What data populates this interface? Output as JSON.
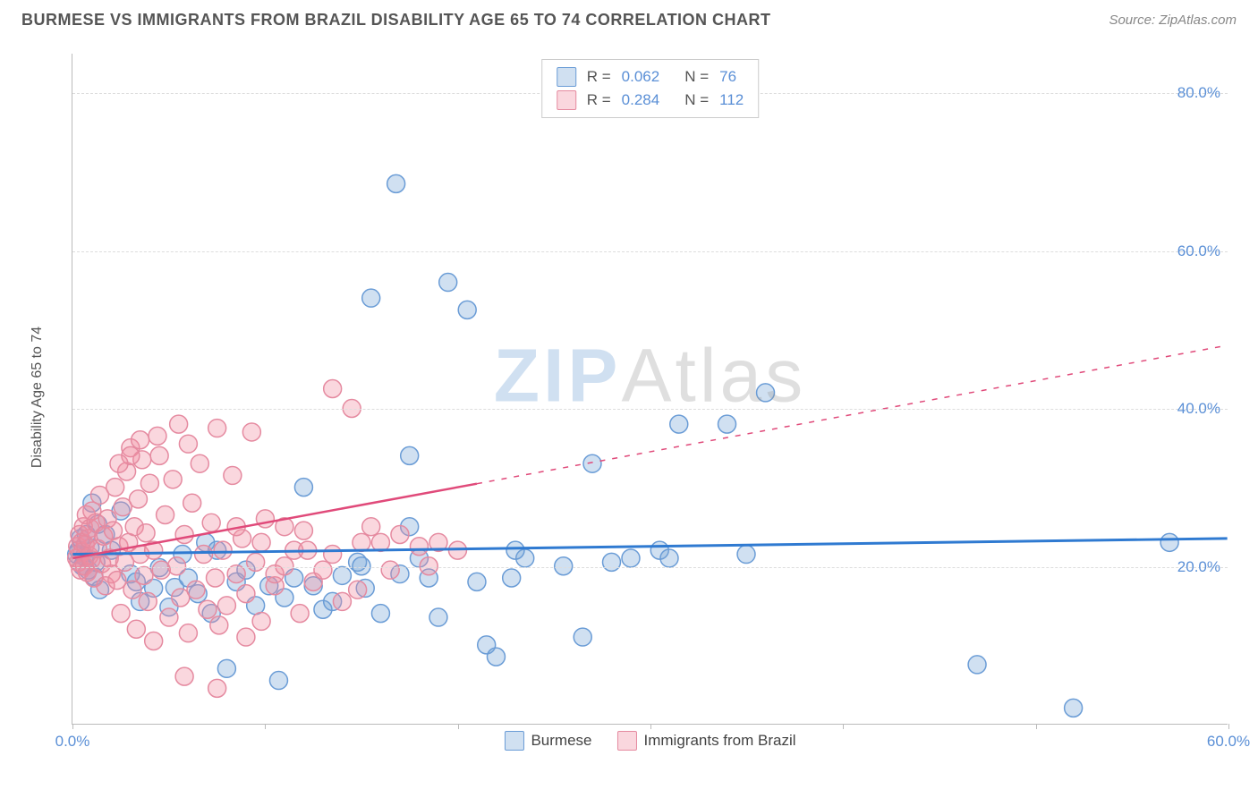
{
  "header": {
    "title": "BURMESE VS IMMIGRANTS FROM BRAZIL DISABILITY AGE 65 TO 74 CORRELATION CHART",
    "source": "Source: ZipAtlas.com"
  },
  "chart": {
    "type": "scatter",
    "y_axis_title": "Disability Age 65 to 74",
    "xlim": [
      0,
      60
    ],
    "ylim": [
      0,
      85
    ],
    "x_ticks": [
      0,
      10,
      20,
      30,
      40,
      50,
      60
    ],
    "x_tick_labels": [
      "0.0%",
      "",
      "",
      "",
      "",
      "",
      "60.0%"
    ],
    "y_gridlines": [
      20,
      40,
      60,
      80
    ],
    "y_tick_labels": [
      "20.0%",
      "40.0%",
      "60.0%",
      "80.0%"
    ],
    "background_color": "#ffffff",
    "grid_color": "#dddddd",
    "axis_color": "#bbbbbb",
    "tick_label_color": "#5a8fd6",
    "tick_label_fontsize": 17,
    "watermark": {
      "zip": "ZIP",
      "atlas": "Atlas"
    },
    "series": [
      {
        "id": "burmese",
        "name": "Burmese",
        "color_fill": "rgba(120,165,215,0.35)",
        "color_stroke": "#6a9cd6",
        "marker_radius": 10,
        "regression": {
          "y_start": 21.5,
          "y_end": 23.5,
          "x_solid_end": 60,
          "color": "#2f7ad1",
          "width": 3
        },
        "r": "0.062",
        "n": "76",
        "points": [
          [
            0.2,
            21.5
          ],
          [
            0.3,
            22.0
          ],
          [
            0.4,
            23.5
          ],
          [
            0.5,
            20.0
          ],
          [
            0.6,
            21.2
          ],
          [
            0.7,
            24.0
          ],
          [
            0.8,
            19.5
          ],
          [
            0.9,
            22.3
          ],
          [
            1.0,
            28.0
          ],
          [
            1.1,
            18.7
          ],
          [
            1.2,
            20.5
          ],
          [
            1.3,
            25.3
          ],
          [
            1.4,
            17.0
          ],
          [
            1.7,
            24.0
          ],
          [
            2.0,
            22.0
          ],
          [
            2.5,
            27.0
          ],
          [
            3.0,
            19.0
          ],
          [
            3.3,
            18.0
          ],
          [
            3.5,
            15.5
          ],
          [
            4.2,
            17.2
          ],
          [
            4.5,
            19.8
          ],
          [
            5.0,
            14.8
          ],
          [
            5.3,
            17.3
          ],
          [
            5.7,
            21.5
          ],
          [
            6.0,
            18.5
          ],
          [
            6.5,
            16.5
          ],
          [
            6.9,
            23.0
          ],
          [
            7.2,
            14.0
          ],
          [
            7.5,
            22.0
          ],
          [
            8.0,
            7.0
          ],
          [
            8.5,
            18.0
          ],
          [
            9.0,
            19.5
          ],
          [
            9.5,
            15.0
          ],
          [
            10.2,
            17.5
          ],
          [
            10.7,
            5.5
          ],
          [
            11.0,
            16.0
          ],
          [
            11.5,
            18.5
          ],
          [
            12.0,
            30.0
          ],
          [
            12.5,
            17.5
          ],
          [
            13.0,
            14.5
          ],
          [
            13.5,
            15.5
          ],
          [
            14.0,
            18.8
          ],
          [
            14.8,
            20.5
          ],
          [
            15.2,
            17.2
          ],
          [
            15.5,
            54.0
          ],
          [
            16.0,
            14.0
          ],
          [
            16.8,
            68.5
          ],
          [
            17.0,
            19.0
          ],
          [
            17.5,
            25.0
          ],
          [
            18.0,
            21.0
          ],
          [
            19.0,
            13.5
          ],
          [
            19.5,
            56.0
          ],
          [
            20.5,
            52.5
          ],
          [
            21.0,
            18.0
          ],
          [
            21.5,
            10.0
          ],
          [
            22.0,
            8.5
          ],
          [
            22.8,
            18.5
          ],
          [
            23.5,
            21.0
          ],
          [
            25.5,
            20.0
          ],
          [
            26.5,
            11.0
          ],
          [
            27.0,
            33.0
          ],
          [
            28.0,
            20.5
          ],
          [
            30.5,
            22.0
          ],
          [
            31.5,
            38.0
          ],
          [
            34.0,
            38.0
          ],
          [
            36.0,
            42.0
          ],
          [
            47.0,
            7.5
          ],
          [
            52.0,
            2.0
          ],
          [
            57.0,
            23.0
          ],
          [
            17.5,
            34.0
          ],
          [
            18.5,
            18.5
          ],
          [
            23.0,
            22.0
          ],
          [
            29.0,
            21.0
          ],
          [
            31.0,
            21.0
          ],
          [
            35.0,
            21.5
          ],
          [
            15.0,
            20.0
          ]
        ]
      },
      {
        "id": "brazil",
        "name": "Immigrants from Brazil",
        "color_fill": "rgba(240,140,160,0.35)",
        "color_stroke": "#e58aa0",
        "marker_radius": 10,
        "regression": {
          "y_start": 21.0,
          "y_end": 48.0,
          "x_solid_end": 21,
          "color": "#e04a7a",
          "width": 2.5
        },
        "r": "0.284",
        "n": "112",
        "points": [
          [
            0.2,
            21.0
          ],
          [
            0.25,
            22.5
          ],
          [
            0.3,
            20.5
          ],
          [
            0.35,
            24.0
          ],
          [
            0.4,
            19.5
          ],
          [
            0.45,
            23.0
          ],
          [
            0.5,
            21.8
          ],
          [
            0.55,
            25.0
          ],
          [
            0.6,
            20.0
          ],
          [
            0.65,
            22.7
          ],
          [
            0.7,
            26.5
          ],
          [
            0.75,
            19.2
          ],
          [
            0.8,
            23.5
          ],
          [
            0.85,
            21.3
          ],
          [
            0.9,
            24.8
          ],
          [
            0.95,
            20.8
          ],
          [
            1.0,
            27.0
          ],
          [
            1.1,
            18.5
          ],
          [
            1.2,
            25.5
          ],
          [
            1.3,
            22.2
          ],
          [
            1.4,
            29.0
          ],
          [
            1.5,
            20.3
          ],
          [
            1.6,
            23.8
          ],
          [
            1.7,
            17.5
          ],
          [
            1.8,
            26.0
          ],
          [
            1.9,
            21.0
          ],
          [
            2.0,
            19.0
          ],
          [
            2.1,
            24.5
          ],
          [
            2.2,
            30.0
          ],
          [
            2.3,
            18.2
          ],
          [
            2.4,
            22.5
          ],
          [
            2.5,
            14.0
          ],
          [
            2.6,
            27.5
          ],
          [
            2.7,
            20.5
          ],
          [
            2.8,
            32.0
          ],
          [
            2.9,
            23.0
          ],
          [
            3.0,
            35.0
          ],
          [
            3.1,
            17.0
          ],
          [
            3.2,
            25.0
          ],
          [
            3.3,
            12.0
          ],
          [
            3.4,
            28.5
          ],
          [
            3.5,
            21.5
          ],
          [
            3.6,
            33.5
          ],
          [
            3.7,
            18.8
          ],
          [
            3.8,
            24.2
          ],
          [
            3.9,
            15.5
          ],
          [
            4.0,
            30.5
          ],
          [
            4.2,
            22.0
          ],
          [
            4.4,
            36.5
          ],
          [
            4.6,
            19.5
          ],
          [
            4.8,
            26.5
          ],
          [
            5.0,
            13.5
          ],
          [
            5.2,
            31.0
          ],
          [
            5.4,
            20.0
          ],
          [
            5.6,
            16.0
          ],
          [
            5.8,
            24.0
          ],
          [
            6.0,
            11.5
          ],
          [
            6.2,
            28.0
          ],
          [
            6.4,
            17.0
          ],
          [
            6.6,
            33.0
          ],
          [
            6.8,
            21.5
          ],
          [
            7.0,
            14.5
          ],
          [
            7.2,
            25.5
          ],
          [
            7.4,
            18.5
          ],
          [
            7.6,
            12.5
          ],
          [
            7.8,
            22.0
          ],
          [
            8.0,
            15.0
          ],
          [
            8.3,
            31.5
          ],
          [
            8.5,
            19.0
          ],
          [
            8.8,
            23.5
          ],
          [
            9.0,
            16.5
          ],
          [
            9.3,
            37.0
          ],
          [
            9.5,
            20.5
          ],
          [
            9.8,
            13.0
          ],
          [
            10.0,
            26.0
          ],
          [
            10.5,
            17.5
          ],
          [
            11.0,
            25.0
          ],
          [
            11.5,
            22.0
          ],
          [
            11.8,
            14.0
          ],
          [
            12.0,
            24.5
          ],
          [
            12.5,
            18.0
          ],
          [
            13.0,
            19.5
          ],
          [
            13.5,
            42.5
          ],
          [
            13.5,
            21.5
          ],
          [
            14.0,
            15.5
          ],
          [
            14.5,
            40.0
          ],
          [
            14.8,
            17.0
          ],
          [
            15.5,
            25.0
          ],
          [
            16.0,
            23.0
          ],
          [
            16.5,
            19.5
          ],
          [
            17.0,
            24.0
          ],
          [
            5.5,
            38.0
          ],
          [
            7.5,
            37.5
          ],
          [
            4.5,
            34.0
          ],
          [
            3.0,
            34.0
          ],
          [
            3.5,
            36.0
          ],
          [
            6.0,
            35.5
          ],
          [
            2.4,
            33.0
          ],
          [
            8.5,
            25.0
          ],
          [
            9.8,
            23.0
          ],
          [
            10.5,
            19.0
          ],
          [
            7.5,
            4.5
          ],
          [
            5.8,
            6.0
          ],
          [
            9.0,
            11.0
          ],
          [
            4.2,
            10.5
          ],
          [
            11.0,
            20.0
          ],
          [
            12.2,
            22.0
          ],
          [
            15.0,
            23.0
          ],
          [
            18.0,
            22.5
          ],
          [
            18.5,
            20.0
          ],
          [
            19.0,
            23.0
          ],
          [
            20.0,
            22.0
          ]
        ]
      }
    ],
    "legend_top_rows": [
      {
        "swatch_fill": "rgba(120,165,215,0.35)",
        "swatch_stroke": "#6a9cd6",
        "r_label": "R =",
        "r_value": "0.062",
        "n_label": "N =",
        "n_value": "76"
      },
      {
        "swatch_fill": "rgba(240,140,160,0.35)",
        "swatch_stroke": "#e58aa0",
        "r_label": "R =",
        "r_value": "0.284",
        "n_label": "N =",
        "n_value": "112"
      }
    ],
    "legend_bottom": [
      {
        "swatch_fill": "rgba(120,165,215,0.35)",
        "swatch_stroke": "#6a9cd6",
        "label": "Burmese"
      },
      {
        "swatch_fill": "rgba(240,140,160,0.35)",
        "swatch_stroke": "#e58aa0",
        "label": "Immigrants from Brazil"
      }
    ]
  }
}
